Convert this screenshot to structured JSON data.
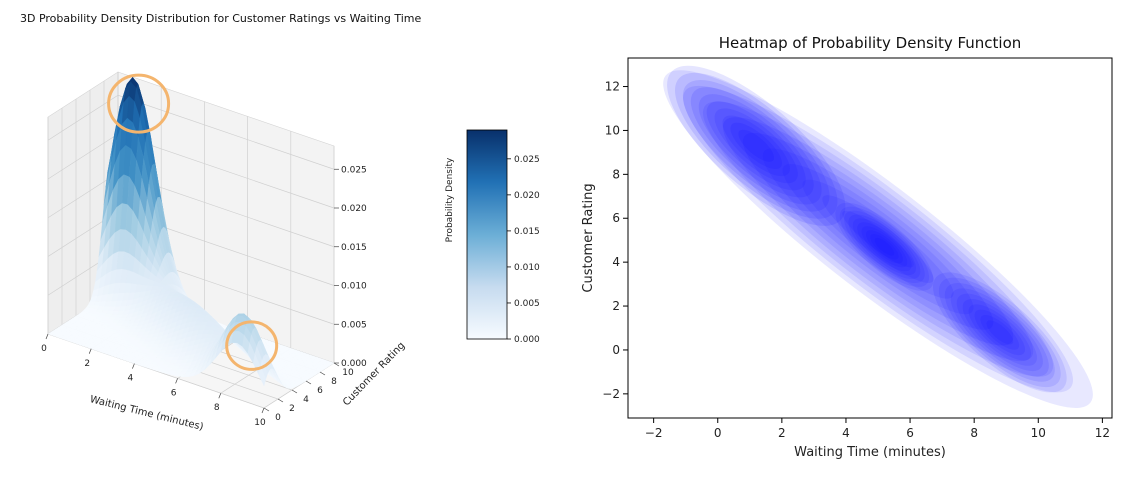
{
  "chart_data": [
    {
      "type": "surface",
      "title": "3D Probability Density Distribution for Customer Ratings vs Waiting Time",
      "xlabel": "Waiting Time (minutes)",
      "ylabel": "Customer Rating",
      "zlabel": "Probability Density",
      "x_ticks": [
        "0",
        "2",
        "4",
        "6",
        "8",
        "10"
      ],
      "y_ticks": [
        "0",
        "2",
        "4",
        "6",
        "8",
        "10"
      ],
      "z_ticks": [
        "0.000",
        "0.005",
        "0.010",
        "0.015",
        "0.020",
        "0.025"
      ],
      "xlim": [
        0,
        10
      ],
      "ylim": [
        0,
        10
      ],
      "zlim": [
        0,
        0.028
      ],
      "colormap": "Blues",
      "grid": true,
      "colorbar": {
        "range": [
          0,
          0.029
        ],
        "ticks": [
          "0.000",
          "0.005",
          "0.010",
          "0.015",
          "0.020",
          "0.025"
        ]
      },
      "peaks": [
        {
          "x": 1,
          "y": 9,
          "z": 0.027
        },
        {
          "x": 8.8,
          "y": 0.8,
          "z": 0.0085
        }
      ],
      "annotations": [
        {
          "type": "circle",
          "color": "#f4b56e",
          "target_peak": 0
        },
        {
          "type": "circle",
          "color": "#f4b56e",
          "target_peak": 1
        }
      ]
    },
    {
      "type": "heatmap",
      "title": "Heatmap of Probability Density Function",
      "xlabel": "Waiting Time (minutes)",
      "ylabel": "Customer Rating",
      "x_ticks": [
        "−2",
        "0",
        "2",
        "4",
        "6",
        "8",
        "10",
        "12"
      ],
      "y_ticks": [
        "−2",
        "0",
        "2",
        "4",
        "6",
        "8",
        "10",
        "12"
      ],
      "xlim": [
        -2.8,
        12.3
      ],
      "ylim": [
        -3.1,
        13.3
      ],
      "color": "#0000ff",
      "levels": 10,
      "clusters": [
        {
          "x": 1.2,
          "y": 9.3,
          "weight": 1.0
        },
        {
          "x": 5.2,
          "y": 4.7,
          "weight": 0.55
        },
        {
          "x": 8.8,
          "y": 0.8,
          "weight": 0.75
        }
      ]
    }
  ]
}
